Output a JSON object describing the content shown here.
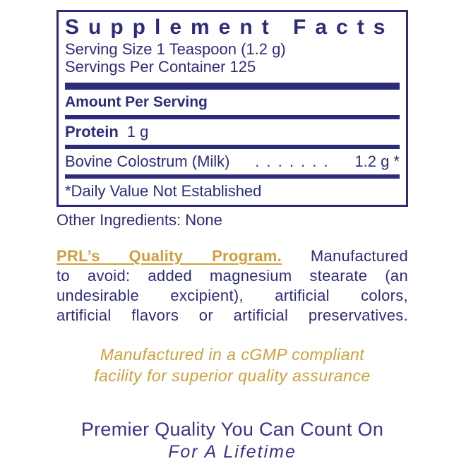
{
  "colors": {
    "navy": "#2d2c7b",
    "gold": "#cf9f3d",
    "indigo": "#3a3489",
    "white": "#ffffff"
  },
  "facts_panel": {
    "title": "Supplement Facts",
    "serving_size": "Serving Size 1 Teaspoon (1.2 g)",
    "servings_per_container": "Servings Per Container 125",
    "amount_per_serving": "Amount Per Serving",
    "nutrients": [
      {
        "name": "Protein",
        "amount": "1 g"
      }
    ],
    "ingredient_row": {
      "name": "Bovine Colostrum (Milk)",
      "dots": ". . . . . . .",
      "amount": "1.2 g *"
    },
    "footnote": "*Daily Value Not Established"
  },
  "other_ingredients": "Other Ingredients: None",
  "quality_program": {
    "heading": "PRL’s Quality Program.",
    "line1_rest": "Manufactured",
    "line2": "to avoid: added magnesium stearate (an",
    "line3": "undesirable excipient), artificial colors,",
    "line4": "artificial flavors or artificial preservatives."
  },
  "cgmp_note": {
    "line1": "Manufactured in a cGMP compliant",
    "line2": "facility for superior quality assurance"
  },
  "tagline": {
    "line1": "Premier Quality You Can Count On",
    "line2": "For A Lifetime"
  }
}
